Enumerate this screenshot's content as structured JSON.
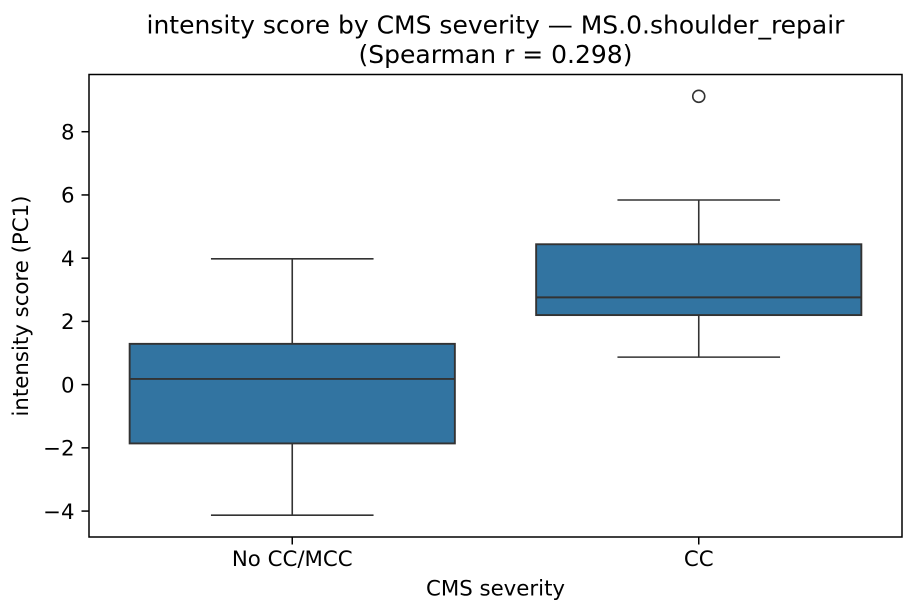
{
  "figure": {
    "background_color": "#ffffff"
  },
  "chart_data": {
    "type": "box",
    "title": "intensity score by CMS severity — MS.0.shoulder_repair\n(Spearman r = 0.298)",
    "title_line1": "intensity score by CMS severity — MS.0.shoulder_repair",
    "title_line2": "(Spearman r = 0.298)",
    "xlabel": "CMS severity",
    "ylabel": "intensity score (PC1)",
    "categories": [
      "No CC/MCC",
      "CC"
    ],
    "xlim": [
      -0.5,
      1.5
    ],
    "ylim": [
      -4.82,
      9.81
    ],
    "yticks": [
      -4,
      -2,
      0,
      2,
      4,
      6,
      8
    ],
    "grid": false,
    "legend": null,
    "boxes": [
      {
        "category": "No CC/MCC",
        "whisker_low": -4.13,
        "q1": -1.86,
        "median": 0.18,
        "q3": 1.29,
        "whisker_high": 3.98,
        "outliers": []
      },
      {
        "category": "CC",
        "whisker_low": 0.87,
        "q1": 2.2,
        "median": 2.76,
        "q3": 4.44,
        "whisker_high": 5.84,
        "outliers": [
          9.12
        ]
      }
    ],
    "box_fill_color": "#3274A1",
    "box_line_color": "#333333",
    "spine_color": "#000000",
    "text_color": "#000000"
  }
}
